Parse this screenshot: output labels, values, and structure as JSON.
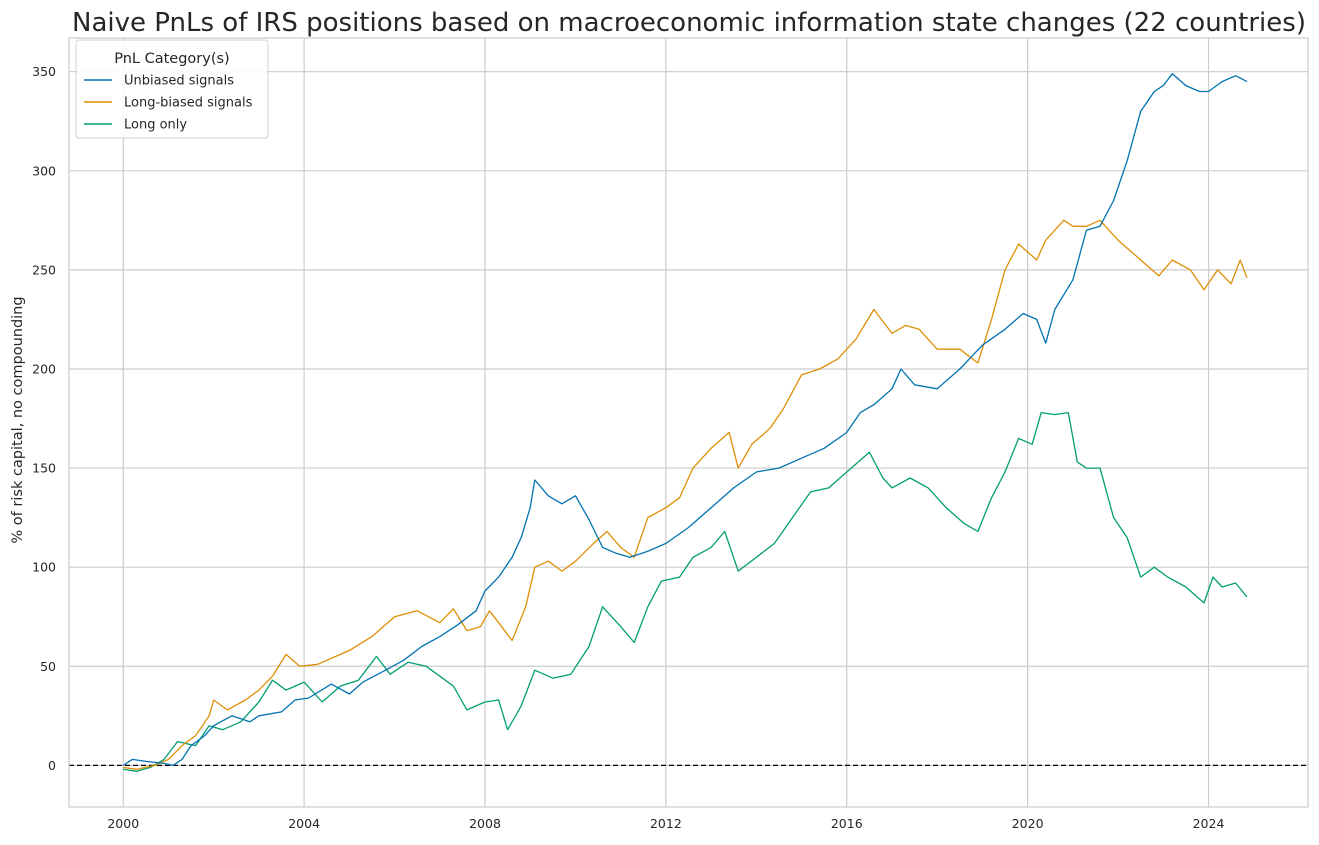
{
  "chart_data": {
    "type": "line",
    "title": "Naive PnLs of IRS positions based on macroeconomic information state changes (22 countries)",
    "xlabel": "",
    "ylabel": "% of risk capital, no compounding",
    "xlim": [
      1998.8,
      2026.2
    ],
    "ylim": [
      -21,
      367
    ],
    "x_ticks": [
      2000,
      2004,
      2008,
      2012,
      2016,
      2020,
      2024
    ],
    "y_ticks": [
      0,
      50,
      100,
      150,
      200,
      250,
      300,
      350
    ],
    "grid": true,
    "zero_line": {
      "y": 0,
      "style": "dashed",
      "color": "#000000"
    },
    "legend": {
      "title": "PnL Category(s)",
      "position": "top-left"
    },
    "series": [
      {
        "name": "Unbiased signals",
        "color": "#0173b2",
        "points": [
          [
            2000.0,
            0
          ],
          [
            2000.2,
            3
          ],
          [
            2000.5,
            2
          ],
          [
            2000.9,
            1
          ],
          [
            2001.1,
            0
          ],
          [
            2001.3,
            3
          ],
          [
            2001.5,
            10
          ],
          [
            2001.8,
            15
          ],
          [
            2002.0,
            20
          ],
          [
            2002.4,
            25
          ],
          [
            2002.8,
            22
          ],
          [
            2003.0,
            25
          ],
          [
            2003.5,
            27
          ],
          [
            2003.8,
            33
          ],
          [
            2004.1,
            34
          ],
          [
            2004.6,
            41
          ],
          [
            2005.0,
            36
          ],
          [
            2005.3,
            42
          ],
          [
            2005.8,
            48
          ],
          [
            2006.2,
            53
          ],
          [
            2006.6,
            60
          ],
          [
            2007.0,
            65
          ],
          [
            2007.4,
            71
          ],
          [
            2007.8,
            78
          ],
          [
            2008.0,
            88
          ],
          [
            2008.3,
            95
          ],
          [
            2008.6,
            105
          ],
          [
            2008.8,
            115
          ],
          [
            2009.0,
            130
          ],
          [
            2009.1,
            144
          ],
          [
            2009.4,
            136
          ],
          [
            2009.7,
            132
          ],
          [
            2010.0,
            136
          ],
          [
            2010.3,
            124
          ],
          [
            2010.6,
            110
          ],
          [
            2010.9,
            107
          ],
          [
            2011.2,
            105
          ],
          [
            2011.6,
            108
          ],
          [
            2012.0,
            112
          ],
          [
            2012.5,
            120
          ],
          [
            2013.0,
            130
          ],
          [
            2013.5,
            140
          ],
          [
            2014.0,
            148
          ],
          [
            2014.5,
            150
          ],
          [
            2015.0,
            155
          ],
          [
            2015.5,
            160
          ],
          [
            2016.0,
            168
          ],
          [
            2016.3,
            178
          ],
          [
            2016.6,
            182
          ],
          [
            2017.0,
            190
          ],
          [
            2017.2,
            200
          ],
          [
            2017.5,
            192
          ],
          [
            2018.0,
            190
          ],
          [
            2018.5,
            200
          ],
          [
            2019.0,
            212
          ],
          [
            2019.5,
            220
          ],
          [
            2019.9,
            228
          ],
          [
            2020.2,
            225
          ],
          [
            2020.4,
            213
          ],
          [
            2020.6,
            230
          ],
          [
            2021.0,
            245
          ],
          [
            2021.3,
            270
          ],
          [
            2021.6,
            272
          ],
          [
            2021.9,
            285
          ],
          [
            2022.2,
            305
          ],
          [
            2022.5,
            330
          ],
          [
            2022.8,
            340
          ],
          [
            2023.0,
            343
          ],
          [
            2023.2,
            349
          ],
          [
            2023.5,
            343
          ],
          [
            2023.8,
            340
          ],
          [
            2024.0,
            340
          ],
          [
            2024.3,
            345
          ],
          [
            2024.6,
            348
          ],
          [
            2024.85,
            345
          ]
        ]
      },
      {
        "name": "Long-biased signals",
        "color": "#de8f05",
        "points": [
          [
            2000.0,
            -1
          ],
          [
            2000.3,
            -2
          ],
          [
            2000.7,
            0
          ],
          [
            2001.0,
            3
          ],
          [
            2001.3,
            10
          ],
          [
            2001.6,
            15
          ],
          [
            2001.9,
            25
          ],
          [
            2002.0,
            33
          ],
          [
            2002.3,
            28
          ],
          [
            2002.7,
            33
          ],
          [
            2003.0,
            38
          ],
          [
            2003.3,
            45
          ],
          [
            2003.6,
            56
          ],
          [
            2003.9,
            50
          ],
          [
            2004.3,
            51
          ],
          [
            2004.7,
            55
          ],
          [
            2005.0,
            58
          ],
          [
            2005.5,
            65
          ],
          [
            2006.0,
            75
          ],
          [
            2006.5,
            78
          ],
          [
            2007.0,
            72
          ],
          [
            2007.3,
            79
          ],
          [
            2007.6,
            68
          ],
          [
            2007.9,
            70
          ],
          [
            2008.1,
            78
          ],
          [
            2008.3,
            72
          ],
          [
            2008.6,
            63
          ],
          [
            2008.9,
            80
          ],
          [
            2009.1,
            100
          ],
          [
            2009.4,
            103
          ],
          [
            2009.7,
            98
          ],
          [
            2010.0,
            103
          ],
          [
            2010.4,
            112
          ],
          [
            2010.7,
            118
          ],
          [
            2011.0,
            110
          ],
          [
            2011.3,
            105
          ],
          [
            2011.6,
            125
          ],
          [
            2012.0,
            130
          ],
          [
            2012.3,
            135
          ],
          [
            2012.6,
            150
          ],
          [
            2013.0,
            160
          ],
          [
            2013.4,
            168
          ],
          [
            2013.6,
            150
          ],
          [
            2013.9,
            162
          ],
          [
            2014.3,
            170
          ],
          [
            2014.6,
            180
          ],
          [
            2015.0,
            197
          ],
          [
            2015.4,
            200
          ],
          [
            2015.8,
            205
          ],
          [
            2016.2,
            215
          ],
          [
            2016.6,
            230
          ],
          [
            2017.0,
            218
          ],
          [
            2017.3,
            222
          ],
          [
            2017.6,
            220
          ],
          [
            2018.0,
            210
          ],
          [
            2018.5,
            210
          ],
          [
            2018.9,
            203
          ],
          [
            2019.2,
            225
          ],
          [
            2019.5,
            250
          ],
          [
            2019.8,
            263
          ],
          [
            2020.2,
            255
          ],
          [
            2020.4,
            265
          ],
          [
            2020.8,
            275
          ],
          [
            2021.0,
            272
          ],
          [
            2021.3,
            272
          ],
          [
            2021.6,
            275
          ],
          [
            2022.0,
            265
          ],
          [
            2022.5,
            255
          ],
          [
            2022.9,
            247
          ],
          [
            2023.2,
            255
          ],
          [
            2023.6,
            250
          ],
          [
            2023.9,
            240
          ],
          [
            2024.2,
            250
          ],
          [
            2024.5,
            243
          ],
          [
            2024.7,
            255
          ],
          [
            2024.85,
            246
          ]
        ]
      },
      {
        "name": "Long only",
        "color": "#029e73",
        "points": [
          [
            2000.0,
            -2
          ],
          [
            2000.3,
            -3
          ],
          [
            2000.6,
            -1
          ],
          [
            2000.9,
            3
          ],
          [
            2001.2,
            12
          ],
          [
            2001.6,
            10
          ],
          [
            2001.9,
            20
          ],
          [
            2002.2,
            18
          ],
          [
            2002.6,
            22
          ],
          [
            2003.0,
            32
          ],
          [
            2003.3,
            43
          ],
          [
            2003.6,
            38
          ],
          [
            2004.0,
            42
          ],
          [
            2004.4,
            32
          ],
          [
            2004.8,
            40
          ],
          [
            2005.2,
            43
          ],
          [
            2005.6,
            55
          ],
          [
            2005.9,
            46
          ],
          [
            2006.3,
            52
          ],
          [
            2006.7,
            50
          ],
          [
            2007.0,
            45
          ],
          [
            2007.3,
            40
          ],
          [
            2007.6,
            28
          ],
          [
            2008.0,
            32
          ],
          [
            2008.3,
            33
          ],
          [
            2008.5,
            18
          ],
          [
            2008.8,
            30
          ],
          [
            2009.1,
            48
          ],
          [
            2009.5,
            44
          ],
          [
            2009.9,
            46
          ],
          [
            2010.3,
            60
          ],
          [
            2010.6,
            80
          ],
          [
            2011.0,
            70
          ],
          [
            2011.3,
            62
          ],
          [
            2011.6,
            80
          ],
          [
            2011.9,
            93
          ],
          [
            2012.3,
            95
          ],
          [
            2012.6,
            105
          ],
          [
            2013.0,
            110
          ],
          [
            2013.3,
            118
          ],
          [
            2013.6,
            98
          ],
          [
            2014.0,
            105
          ],
          [
            2014.4,
            112
          ],
          [
            2014.8,
            125
          ],
          [
            2015.2,
            138
          ],
          [
            2015.6,
            140
          ],
          [
            2016.0,
            148
          ],
          [
            2016.5,
            158
          ],
          [
            2016.8,
            145
          ],
          [
            2017.0,
            140
          ],
          [
            2017.4,
            145
          ],
          [
            2017.8,
            140
          ],
          [
            2018.2,
            130
          ],
          [
            2018.6,
            122
          ],
          [
            2018.9,
            118
          ],
          [
            2019.2,
            135
          ],
          [
            2019.5,
            148
          ],
          [
            2019.8,
            165
          ],
          [
            2020.1,
            162
          ],
          [
            2020.3,
            178
          ],
          [
            2020.6,
            177
          ],
          [
            2020.9,
            178
          ],
          [
            2021.1,
            153
          ],
          [
            2021.3,
            150
          ],
          [
            2021.6,
            150
          ],
          [
            2021.9,
            125
          ],
          [
            2022.2,
            115
          ],
          [
            2022.5,
            95
          ],
          [
            2022.8,
            100
          ],
          [
            2023.1,
            95
          ],
          [
            2023.5,
            90
          ],
          [
            2023.9,
            82
          ],
          [
            2024.1,
            95
          ],
          [
            2024.3,
            90
          ],
          [
            2024.6,
            92
          ],
          [
            2024.85,
            85
          ]
        ]
      }
    ]
  }
}
